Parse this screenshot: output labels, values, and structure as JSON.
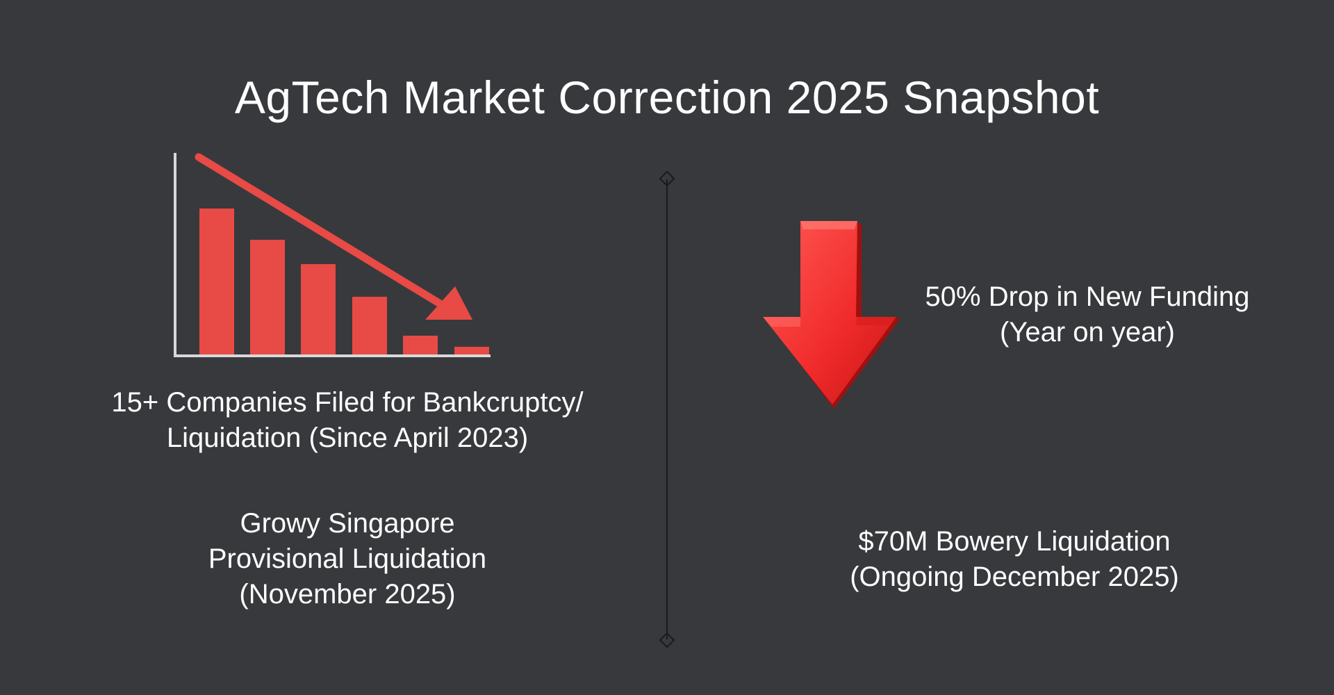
{
  "title": "AgTech Market Correction 2025 Snapshot",
  "stats": {
    "bankruptcy": {
      "lines": [
        "15+ Companies Filed for Bankcruptcy/",
        "Liquidation (Since April 2023)"
      ]
    },
    "growy": {
      "lines": [
        "Growy Singapore",
        "Provisional Liquidation",
        "(November 2025)"
      ]
    },
    "funding": {
      "lines": [
        "50% Drop in New Funding",
        "(Year on year)"
      ]
    },
    "bowery": {
      "lines": [
        "$70M Bowery Liquidation",
        "(Ongoing December 2025)"
      ]
    }
  },
  "icons": {
    "decline_chart": "declining-bar-chart-icon",
    "down_arrow": "red-down-arrow-icon"
  },
  "colors": {
    "background": "#38393c",
    "text": "#ffffff",
    "chart_red": "#e84a45",
    "arrow_red": "#f02a2a",
    "divider": "#1a1a1a"
  }
}
